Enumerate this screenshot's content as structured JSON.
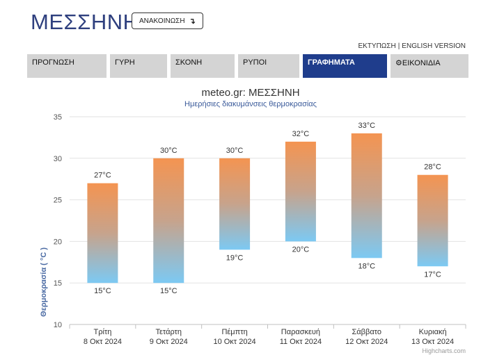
{
  "header": {
    "title": "ΜΕΣΣΗΝΗ",
    "announce_label": "ΑΝΑΚΟΙΝΩΣΗ",
    "announce_icon": "↴",
    "print_link": "ΕΚΤΥΠΩΣΗ",
    "separator": "|",
    "english_link": "ENGLISH VERSION"
  },
  "tabs": [
    {
      "label": "ΠΡΟΓΝΩΣΗ",
      "active": false
    },
    {
      "label": "ΓΥΡΗ",
      "active": false
    },
    {
      "label": "ΣΚΟΝΗ",
      "active": false
    },
    {
      "label": "ΡΥΠΟΙ",
      "active": false
    },
    {
      "label": "ΓΡΑΦΗΜΑΤΑ",
      "active": true
    },
    {
      "label": "ΕΙΚΟΝΙΔΙΑ",
      "active": false,
      "icon": "gear-icon"
    }
  ],
  "colors": {
    "title": "#2e3f7e",
    "active_tab": "#1f3d8c",
    "tab": "#d4d4d4",
    "bar_top": "#f49451",
    "bar_bottom": "#7cc9f3",
    "ylabel": "#4a6aa3",
    "subtitle": "#3a5a9a"
  },
  "chart_data": {
    "type": "bar",
    "subtype": "columnrange",
    "title": "meteo.gr: ΜΕΣΣΗΝΗ",
    "subtitle": "Ημερήσιες διακυμάνσεις θερμοκρασίας",
    "ylabel": "Θερμοκρασία ( °C )",
    "ylim": [
      10,
      35
    ],
    "yticks": [
      10,
      15,
      20,
      25,
      30,
      35
    ],
    "categories": [
      {
        "day": "Τρίτη",
        "date": "8 Οκτ 2024"
      },
      {
        "day": "Τετάρτη",
        "date": "9 Οκτ 2024"
      },
      {
        "day": "Πέμπτη",
        "date": "10 Οκτ 2024"
      },
      {
        "day": "Παρασκευή",
        "date": "11 Οκτ 2024"
      },
      {
        "day": "Σάββατο",
        "date": "12 Οκτ 2024"
      },
      {
        "day": "Κυριακή",
        "date": "13 Οκτ 2024"
      }
    ],
    "min": [
      15,
      15,
      19,
      20,
      18,
      17
    ],
    "max": [
      27,
      30,
      30,
      32,
      33,
      28
    ],
    "unit": "°C",
    "grid": true,
    "credit": "Highcharts.com"
  }
}
